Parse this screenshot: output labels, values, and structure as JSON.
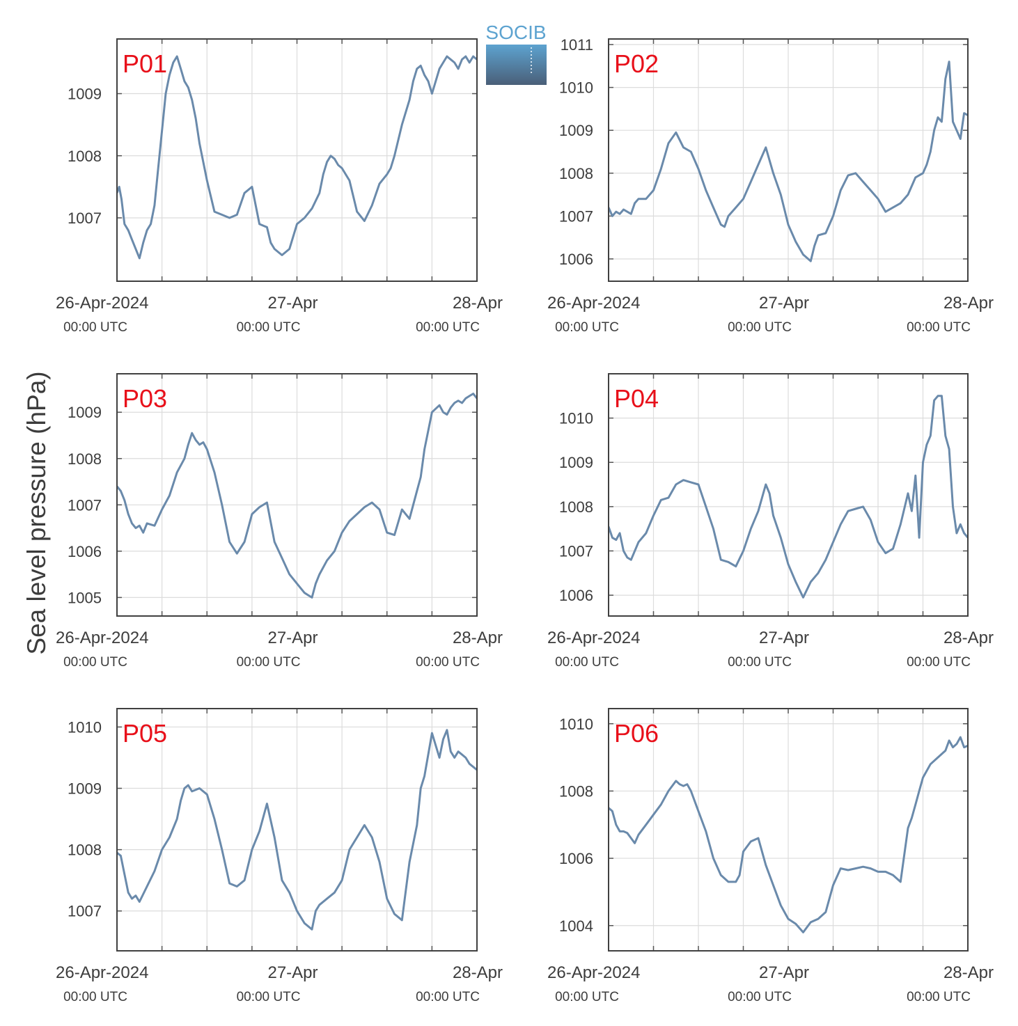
{
  "figure": {
    "ylabel": "Sea level pressure (hPa)",
    "logo_text": "SOCIB",
    "x_ticks_main": [
      "26-Apr-2024",
      "27-Apr",
      "28-Apr"
    ],
    "x_ticks_sub": [
      "00:00 UTC",
      "00:00 UTC",
      "00:00 UTC"
    ],
    "line_color": "#6a8aab",
    "label_color": "#e8101a",
    "grid_color": "#dcdcdc"
  },
  "chart_data": [
    {
      "type": "line",
      "title": "P01",
      "xlim": [
        0,
        48
      ],
      "ylim": [
        1005.98,
        1009.88
      ],
      "yticks": [
        1007,
        1008,
        1009
      ],
      "grid": true,
      "x": [
        0,
        0.3,
        0.6,
        1.0,
        1.5,
        2.0,
        2.5,
        3.0,
        3.5,
        4.0,
        4.5,
        5.0,
        5.5,
        6.0,
        6.5,
        7.0,
        7.5,
        8.0,
        8.5,
        9.0,
        9.5,
        10.0,
        10.5,
        11.0,
        11.5,
        12.0,
        13.0,
        14.0,
        15.0,
        16.0,
        17.0,
        18.0,
        19.0,
        20.0,
        20.5,
        21.0,
        21.5,
        22.0,
        23.0,
        24.0,
        25.0,
        26.0,
        27.0,
        27.5,
        28.0,
        28.5,
        29.0,
        29.5,
        30.0,
        31.0,
        32.0,
        33.0,
        34.0,
        35.0,
        36.0,
        36.5,
        37.0,
        38.0,
        39.0,
        39.5,
        40.0,
        40.5,
        41.0,
        41.5,
        42.0,
        43.0,
        44.0,
        44.5,
        45.0,
        45.5,
        46.0,
        46.5,
        47.0,
        47.5,
        48.0
      ],
      "values": [
        1007.4,
        1007.5,
        1007.3,
        1006.9,
        1006.8,
        1006.65,
        1006.5,
        1006.35,
        1006.6,
        1006.8,
        1006.9,
        1007.2,
        1007.8,
        1008.4,
        1009.0,
        1009.3,
        1009.5,
        1009.6,
        1009.4,
        1009.2,
        1009.1,
        1008.9,
        1008.6,
        1008.2,
        1007.9,
        1007.6,
        1007.1,
        1007.05,
        1007.0,
        1007.05,
        1007.4,
        1007.5,
        1006.9,
        1006.85,
        1006.6,
        1006.5,
        1006.45,
        1006.4,
        1006.5,
        1006.9,
        1007.0,
        1007.15,
        1007.4,
        1007.7,
        1007.9,
        1008.0,
        1007.95,
        1007.85,
        1007.8,
        1007.6,
        1007.1,
        1006.95,
        1007.2,
        1007.55,
        1007.7,
        1007.8,
        1008.0,
        1008.5,
        1008.9,
        1009.2,
        1009.4,
        1009.45,
        1009.3,
        1009.2,
        1009.0,
        1009.4,
        1009.6,
        1009.55,
        1009.5,
        1009.4,
        1009.55,
        1009.6,
        1009.5,
        1009.6,
        1009.55
      ]
    },
    {
      "type": "line",
      "title": "P02",
      "xlim": [
        0,
        48
      ],
      "ylim": [
        1005.48,
        1011.13
      ],
      "yticks": [
        1006,
        1007,
        1008,
        1009,
        1010,
        1011
      ],
      "grid": true,
      "x": [
        0,
        0.5,
        1.0,
        1.5,
        2.0,
        2.5,
        3.0,
        3.5,
        4.0,
        5.0,
        6.0,
        7.0,
        8.0,
        9.0,
        10.0,
        11.0,
        12.0,
        13.0,
        14.0,
        15.0,
        15.5,
        16.0,
        17.0,
        18.0,
        19.0,
        20.0,
        21.0,
        22.0,
        23.0,
        24.0,
        25.0,
        26.0,
        27.0,
        27.5,
        28.0,
        29.0,
        30.0,
        31.0,
        32.0,
        33.0,
        34.0,
        35.0,
        36.0,
        37.0,
        38.0,
        39.0,
        40.0,
        41.0,
        42.0,
        42.5,
        43.0,
        43.5,
        44.0,
        44.5,
        45.0,
        45.5,
        46.0,
        46.5,
        47.0,
        47.5,
        48.0
      ],
      "values": [
        1007.2,
        1007.0,
        1007.1,
        1007.05,
        1007.15,
        1007.1,
        1007.05,
        1007.3,
        1007.4,
        1007.4,
        1007.6,
        1008.1,
        1008.7,
        1008.95,
        1008.6,
        1008.5,
        1008.1,
        1007.6,
        1007.2,
        1006.8,
        1006.75,
        1007.0,
        1007.2,
        1007.4,
        1007.8,
        1008.2,
        1008.6,
        1008.0,
        1007.5,
        1006.8,
        1006.4,
        1006.1,
        1005.95,
        1006.3,
        1006.55,
        1006.6,
        1007.0,
        1007.6,
        1007.95,
        1008.0,
        1007.8,
        1007.6,
        1007.4,
        1007.1,
        1007.2,
        1007.3,
        1007.5,
        1007.9,
        1008.0,
        1008.2,
        1008.5,
        1009.0,
        1009.3,
        1009.2,
        1010.2,
        1010.6,
        1009.2,
        1009.0,
        1008.8,
        1009.4,
        1009.35
      ]
    },
    {
      "type": "line",
      "title": "P03",
      "xlim": [
        0,
        48
      ],
      "ylim": [
        1004.6,
        1009.83
      ],
      "yticks": [
        1005,
        1006,
        1007,
        1008,
        1009
      ],
      "grid": true,
      "x": [
        0,
        0.5,
        1.0,
        1.5,
        2.0,
        2.5,
        3.0,
        3.5,
        4.0,
        5.0,
        6.0,
        7.0,
        8.0,
        8.5,
        9.0,
        9.5,
        10.0,
        10.5,
        11.0,
        11.5,
        12.0,
        13.0,
        14.0,
        15.0,
        16.0,
        17.0,
        18.0,
        19.0,
        20.0,
        21.0,
        22.0,
        23.0,
        24.0,
        25.0,
        25.5,
        26.0,
        26.5,
        27.0,
        28.0,
        29.0,
        30.0,
        31.0,
        32.0,
        33.0,
        34.0,
        35.0,
        36.0,
        37.0,
        38.0,
        39.0,
        40.0,
        40.5,
        41.0,
        42.0,
        43.0,
        43.5,
        44.0,
        44.5,
        45.0,
        45.5,
        46.0,
        46.5,
        47.0,
        47.5,
        48.0
      ],
      "values": [
        1007.4,
        1007.3,
        1007.1,
        1006.8,
        1006.6,
        1006.5,
        1006.55,
        1006.4,
        1006.6,
        1006.55,
        1006.9,
        1007.2,
        1007.7,
        1007.85,
        1008.0,
        1008.3,
        1008.55,
        1008.4,
        1008.3,
        1008.35,
        1008.2,
        1007.7,
        1007.0,
        1006.2,
        1005.95,
        1006.2,
        1006.8,
        1006.95,
        1007.05,
        1006.2,
        1005.85,
        1005.5,
        1005.3,
        1005.1,
        1005.05,
        1005.0,
        1005.3,
        1005.5,
        1005.8,
        1006.0,
        1006.4,
        1006.65,
        1006.8,
        1006.95,
        1007.05,
        1006.9,
        1006.4,
        1006.35,
        1006.9,
        1006.7,
        1007.3,
        1007.6,
        1008.2,
        1009.0,
        1009.15,
        1009.0,
        1008.95,
        1009.1,
        1009.2,
        1009.25,
        1009.2,
        1009.3,
        1009.35,
        1009.4,
        1009.3
      ]
    },
    {
      "type": "line",
      "title": "P04",
      "xlim": [
        0,
        48
      ],
      "ylim": [
        1005.53,
        1011.0
      ],
      "yticks": [
        1006,
        1007,
        1008,
        1009,
        1010
      ],
      "grid": true,
      "x": [
        0,
        0.5,
        1.0,
        1.5,
        2.0,
        2.5,
        3.0,
        4.0,
        5.0,
        6.0,
        7.0,
        8.0,
        9.0,
        10.0,
        11.0,
        12.0,
        13.0,
        14.0,
        15.0,
        16.0,
        17.0,
        18.0,
        19.0,
        20.0,
        21.0,
        21.5,
        22.0,
        23.0,
        24.0,
        25.0,
        26.0,
        27.0,
        27.5,
        28.0,
        29.0,
        30.0,
        31.0,
        32.0,
        33.0,
        34.0,
        35.0,
        36.0,
        37.0,
        38.0,
        39.0,
        40.0,
        40.5,
        41.0,
        41.5,
        42.0,
        42.5,
        43.0,
        43.5,
        44.0,
        44.5,
        45.0,
        45.5,
        46.0,
        46.5,
        47.0,
        47.5,
        48.0
      ],
      "values": [
        1007.55,
        1007.3,
        1007.25,
        1007.4,
        1007.0,
        1006.85,
        1006.8,
        1007.2,
        1007.4,
        1007.8,
        1008.15,
        1008.2,
        1008.5,
        1008.6,
        1008.55,
        1008.5,
        1008.0,
        1007.5,
        1006.8,
        1006.75,
        1006.65,
        1007.0,
        1007.5,
        1007.9,
        1008.5,
        1008.3,
        1007.8,
        1007.3,
        1006.7,
        1006.3,
        1005.95,
        1006.3,
        1006.4,
        1006.5,
        1006.8,
        1007.2,
        1007.6,
        1007.9,
        1007.95,
        1008.0,
        1007.7,
        1007.2,
        1006.95,
        1007.05,
        1007.6,
        1008.3,
        1007.9,
        1008.7,
        1007.3,
        1009.0,
        1009.4,
        1009.6,
        1010.4,
        1010.5,
        1010.5,
        1009.6,
        1009.3,
        1008.0,
        1007.4,
        1007.6,
        1007.4,
        1007.3
      ]
    },
    {
      "type": "line",
      "title": "P05",
      "xlim": [
        0,
        48
      ],
      "ylim": [
        1006.35,
        1010.3
      ],
      "yticks": [
        1007,
        1008,
        1009,
        1010
      ],
      "grid": true,
      "x": [
        0,
        0.5,
        1.0,
        1.5,
        2.0,
        2.5,
        3.0,
        4.0,
        5.0,
        6.0,
        7.0,
        8.0,
        8.5,
        9.0,
        9.5,
        10.0,
        11.0,
        12.0,
        13.0,
        14.0,
        15.0,
        16.0,
        17.0,
        18.0,
        19.0,
        20.0,
        21.0,
        22.0,
        23.0,
        24.0,
        25.0,
        26.0,
        26.5,
        27.0,
        28.0,
        29.0,
        30.0,
        31.0,
        32.0,
        33.0,
        34.0,
        35.0,
        36.0,
        37.0,
        38.0,
        39.0,
        40.0,
        40.5,
        41.0,
        42.0,
        43.0,
        43.5,
        44.0,
        44.5,
        45.0,
        45.5,
        46.0,
        46.5,
        47.0,
        47.5,
        48.0
      ],
      "values": [
        1007.95,
        1007.9,
        1007.6,
        1007.3,
        1007.2,
        1007.25,
        1007.15,
        1007.4,
        1007.65,
        1008.0,
        1008.2,
        1008.5,
        1008.8,
        1009.0,
        1009.05,
        1008.95,
        1009.0,
        1008.9,
        1008.5,
        1008.0,
        1007.45,
        1007.4,
        1007.5,
        1008.0,
        1008.3,
        1008.75,
        1008.2,
        1007.5,
        1007.3,
        1007.0,
        1006.8,
        1006.7,
        1007.0,
        1007.1,
        1007.2,
        1007.3,
        1007.5,
        1008.0,
        1008.2,
        1008.4,
        1008.2,
        1007.8,
        1007.2,
        1006.95,
        1006.85,
        1007.8,
        1008.4,
        1009.0,
        1009.2,
        1009.9,
        1009.5,
        1009.8,
        1009.95,
        1009.6,
        1009.5,
        1009.6,
        1009.55,
        1009.5,
        1009.4,
        1009.35,
        1009.3
      ]
    },
    {
      "type": "line",
      "title": "P06",
      "xlim": [
        0,
        48
      ],
      "ylim": [
        1003.25,
        1010.45
      ],
      "yticks": [
        1004,
        1006,
        1008,
        1010
      ],
      "grid": true,
      "x": [
        0,
        0.5,
        1.0,
        1.5,
        2.0,
        2.5,
        3.0,
        3.5,
        4.0,
        5.0,
        6.0,
        7.0,
        8.0,
        9.0,
        9.5,
        10.0,
        10.5,
        11.0,
        12.0,
        13.0,
        14.0,
        15.0,
        16.0,
        17.0,
        17.5,
        18.0,
        19.0,
        20.0,
        21.0,
        22.0,
        23.0,
        24.0,
        25.0,
        26.0,
        27.0,
        27.5,
        28.0,
        29.0,
        30.0,
        31.0,
        32.0,
        33.0,
        34.0,
        35.0,
        36.0,
        37.0,
        38.0,
        39.0,
        40.0,
        40.5,
        41.0,
        41.5,
        42.0,
        43.0,
        44.0,
        45.0,
        45.5,
        46.0,
        46.5,
        47.0,
        47.5,
        48.0
      ],
      "values": [
        1007.5,
        1007.4,
        1007.0,
        1006.8,
        1006.8,
        1006.75,
        1006.6,
        1006.45,
        1006.7,
        1007.0,
        1007.3,
        1007.6,
        1008.0,
        1008.3,
        1008.2,
        1008.15,
        1008.2,
        1008.0,
        1007.4,
        1006.8,
        1006.0,
        1005.5,
        1005.3,
        1005.3,
        1005.5,
        1006.2,
        1006.5,
        1006.6,
        1005.8,
        1005.2,
        1004.6,
        1004.2,
        1004.05,
        1003.8,
        1004.1,
        1004.15,
        1004.2,
        1004.4,
        1005.2,
        1005.7,
        1005.65,
        1005.7,
        1005.75,
        1005.7,
        1005.6,
        1005.6,
        1005.5,
        1005.3,
        1006.9,
        1007.2,
        1007.6,
        1008.0,
        1008.4,
        1008.8,
        1009.0,
        1009.2,
        1009.5,
        1009.3,
        1009.4,
        1009.6,
        1009.3,
        1009.35
      ]
    }
  ]
}
